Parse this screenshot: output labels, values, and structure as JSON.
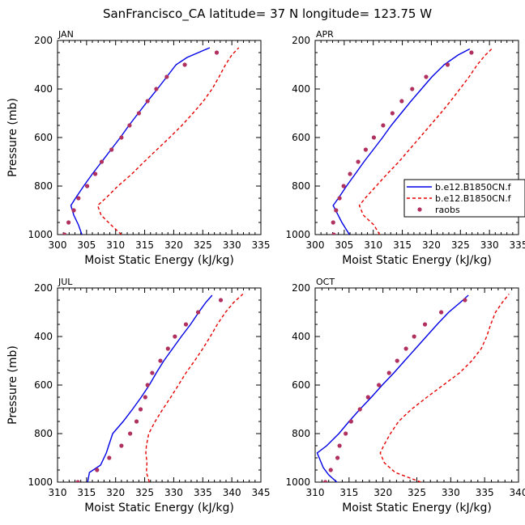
{
  "figure": {
    "title": "SanFrancisco_CA  latitude= 37 N longitude= 123.75 W"
  },
  "legend": {
    "entries": [
      {
        "label": "b.e12.B1850CN.f",
        "style": "solid",
        "color": "#0000e6"
      },
      {
        "label": "b.e12.B1850CN.f",
        "style": "dashed",
        "color": "#e60000"
      },
      {
        "label": "raobs",
        "style": "dot",
        "color": "#b03060"
      }
    ]
  },
  "chart_data": [
    {
      "type": "line",
      "panel_label": "JAN",
      "xlabel": "Moist Static Energy (kJ/kg)",
      "ylabel": "Pressure (mb)",
      "xlim": [
        300,
        335
      ],
      "ylim": [
        1000,
        200
      ],
      "xticks": [
        "300",
        "305",
        "310",
        "315",
        "320",
        "325",
        "330",
        "335"
      ],
      "yticks": [
        "200",
        "400",
        "600",
        "800",
        "1000"
      ],
      "series": [
        {
          "style": "solid",
          "color": "#0000e6",
          "points": [
            [
              304.2,
              1000
            ],
            [
              303.6,
              960
            ],
            [
              302.8,
              920
            ],
            [
              302.3,
              880
            ],
            [
              303.1,
              850
            ],
            [
              304.5,
              800
            ],
            [
              306.0,
              750
            ],
            [
              307.6,
              700
            ],
            [
              309.2,
              650
            ],
            [
              310.8,
              600
            ],
            [
              312.3,
              550
            ],
            [
              313.9,
              500
            ],
            [
              315.5,
              450
            ],
            [
              317.2,
              400
            ],
            [
              318.8,
              350
            ],
            [
              320.4,
              300
            ],
            [
              322.3,
              270
            ],
            [
              326.2,
              230
            ]
          ]
        },
        {
          "style": "dashed",
          "color": "#e60000",
          "points": [
            [
              311.0,
              1000
            ],
            [
              309.2,
              960
            ],
            [
              307.5,
              920
            ],
            [
              306.9,
              880
            ],
            [
              308.3,
              850
            ],
            [
              310.4,
              800
            ],
            [
              312.8,
              750
            ],
            [
              314.9,
              700
            ],
            [
              317.1,
              650
            ],
            [
              319.3,
              600
            ],
            [
              321.4,
              550
            ],
            [
              323.3,
              500
            ],
            [
              325.1,
              450
            ],
            [
              326.6,
              400
            ],
            [
              327.8,
              350
            ],
            [
              328.9,
              300
            ],
            [
              330.0,
              260
            ],
            [
              331.2,
              230
            ]
          ]
        }
      ],
      "raobs": [
        [
          301.2,
          1000
        ],
        [
          301.9,
          950
        ],
        [
          302.8,
          900
        ],
        [
          303.6,
          850
        ],
        [
          305.1,
          800
        ],
        [
          306.5,
          750
        ],
        [
          307.6,
          700
        ],
        [
          309.3,
          650
        ],
        [
          311.0,
          600
        ],
        [
          312.4,
          550
        ],
        [
          314.0,
          500
        ],
        [
          315.5,
          450
        ],
        [
          317.0,
          400
        ],
        [
          318.8,
          350
        ],
        [
          321.9,
          300
        ],
        [
          327.4,
          250
        ]
      ]
    },
    {
      "type": "line",
      "panel_label": "APR",
      "xlabel": "Moist Static Energy (kJ/kg)",
      "ylabel": "",
      "xlim": [
        300,
        335
      ],
      "ylim": [
        1000,
        200
      ],
      "xticks": [
        "300",
        "305",
        "310",
        "315",
        "320",
        "325",
        "330",
        "335"
      ],
      "yticks": [
        "200",
        "400",
        "600",
        "800",
        "1000"
      ],
      "series": [
        {
          "style": "solid",
          "color": "#0000e6",
          "points": [
            [
              305.9,
              1000
            ],
            [
              304.6,
              950
            ],
            [
              303.1,
              880
            ],
            [
              304.0,
              850
            ],
            [
              305.4,
              800
            ],
            [
              306.9,
              750
            ],
            [
              308.4,
              700
            ],
            [
              310.0,
              650
            ],
            [
              311.6,
              600
            ],
            [
              313.1,
              550
            ],
            [
              314.8,
              500
            ],
            [
              316.5,
              450
            ],
            [
              318.3,
              400
            ],
            [
              320.1,
              350
            ],
            [
              322.2,
              300
            ],
            [
              324.6,
              260
            ],
            [
              326.6,
              235
            ]
          ]
        },
        {
          "style": "dashed",
          "color": "#e60000",
          "points": [
            [
              311.1,
              1000
            ],
            [
              310.1,
              960
            ],
            [
              308.3,
              920
            ],
            [
              307.6,
              880
            ],
            [
              308.6,
              850
            ],
            [
              310.5,
              800
            ],
            [
              312.4,
              750
            ],
            [
              314.4,
              700
            ],
            [
              316.2,
              650
            ],
            [
              318.0,
              600
            ],
            [
              319.8,
              550
            ],
            [
              321.6,
              500
            ],
            [
              323.3,
              450
            ],
            [
              324.9,
              400
            ],
            [
              326.5,
              350
            ],
            [
              327.9,
              300
            ],
            [
              329.3,
              260
            ],
            [
              330.6,
              230
            ]
          ]
        }
      ],
      "raobs": [
        [
          303.2,
          1000
        ],
        [
          303.1,
          950
        ],
        [
          303.6,
          900
        ],
        [
          304.2,
          850
        ],
        [
          304.9,
          800
        ],
        [
          306.0,
          750
        ],
        [
          307.4,
          700
        ],
        [
          308.7,
          650
        ],
        [
          310.1,
          600
        ],
        [
          311.7,
          550
        ],
        [
          313.3,
          500
        ],
        [
          314.9,
          450
        ],
        [
          316.7,
          400
        ],
        [
          319.1,
          350
        ],
        [
          322.8,
          300
        ],
        [
          326.9,
          250
        ]
      ]
    },
    {
      "type": "line",
      "panel_label": "JUL",
      "xlabel": "Moist Static Energy (kJ/kg)",
      "ylabel": "Pressure (mb)",
      "xlim": [
        310,
        345
      ],
      "ylim": [
        1000,
        200
      ],
      "xticks": [
        "310",
        "315",
        "320",
        "325",
        "330",
        "335",
        "340",
        "345"
      ],
      "yticks": [
        "200",
        "400",
        "600",
        "800",
        "1000"
      ],
      "series": [
        {
          "style": "solid",
          "color": "#0000e6",
          "points": [
            [
              315.1,
              1010
            ],
            [
              315.5,
              960
            ],
            [
              317.4,
              930
            ],
            [
              318.4,
              880
            ],
            [
              318.8,
              850
            ],
            [
              319.5,
              800
            ],
            [
              321.3,
              750
            ],
            [
              322.9,
              700
            ],
            [
              324.4,
              650
            ],
            [
              325.8,
              600
            ],
            [
              327.0,
              550
            ],
            [
              328.3,
              500
            ],
            [
              329.8,
              450
            ],
            [
              331.3,
              400
            ],
            [
              332.9,
              350
            ],
            [
              334.3,
              300
            ],
            [
              335.5,
              260
            ],
            [
              336.6,
              230
            ]
          ]
        },
        {
          "style": "dashed",
          "color": "#e60000",
          "points": [
            [
              325.8,
              1000
            ],
            [
              325.3,
              960
            ],
            [
              325.4,
              920
            ],
            [
              325.2,
              880
            ],
            [
              325.3,
              850
            ],
            [
              325.7,
              800
            ],
            [
              326.8,
              750
            ],
            [
              328.1,
              700
            ],
            [
              329.5,
              650
            ],
            [
              330.8,
              600
            ],
            [
              332.1,
              550
            ],
            [
              333.6,
              500
            ],
            [
              335.0,
              450
            ],
            [
              336.3,
              400
            ],
            [
              337.5,
              350
            ],
            [
              338.9,
              300
            ],
            [
              340.3,
              260
            ],
            [
              341.9,
              225
            ]
          ]
        }
      ],
      "raobs": [
        [
          313.5,
          1000
        ],
        [
          316.8,
          950
        ],
        [
          318.9,
          900
        ],
        [
          321.0,
          850
        ],
        [
          322.5,
          800
        ],
        [
          323.6,
          750
        ],
        [
          324.3,
          700
        ],
        [
          325.1,
          650
        ],
        [
          325.5,
          600
        ],
        [
          326.3,
          550
        ],
        [
          327.7,
          500
        ],
        [
          329.0,
          450
        ],
        [
          330.2,
          400
        ],
        [
          332.1,
          350
        ],
        [
          334.2,
          300
        ],
        [
          338.1,
          250
        ]
      ]
    },
    {
      "type": "line",
      "panel_label": "OCT",
      "xlabel": "Moist Static Energy (kJ/kg)",
      "ylabel": "",
      "xlim": [
        310,
        340
      ],
      "ylim": [
        1000,
        200
      ],
      "xticks": [
        "310",
        "315",
        "320",
        "325",
        "330",
        "335",
        "340"
      ],
      "yticks": [
        "200",
        "400",
        "600",
        "800",
        "1000"
      ],
      "series": [
        {
          "style": "solid",
          "color": "#0000e6",
          "points": [
            [
              313.6,
              1010
            ],
            [
              312.0,
              970
            ],
            [
              311.2,
              940
            ],
            [
              310.6,
              900
            ],
            [
              310.3,
              880
            ],
            [
              311.7,
              850
            ],
            [
              313.5,
              800
            ],
            [
              315.0,
              750
            ],
            [
              316.6,
              700
            ],
            [
              318.3,
              650
            ],
            [
              319.9,
              600
            ],
            [
              321.6,
              550
            ],
            [
              323.2,
              500
            ],
            [
              324.8,
              450
            ],
            [
              326.4,
              400
            ],
            [
              328.0,
              350
            ],
            [
              329.7,
              300
            ],
            [
              331.4,
              260
            ],
            [
              332.6,
              230
            ]
          ]
        },
        {
          "style": "dashed",
          "color": "#e60000",
          "points": [
            [
              325.6,
              1000
            ],
            [
              321.8,
              960
            ],
            [
              320.2,
              920
            ],
            [
              319.6,
              880
            ],
            [
              320.1,
              850
            ],
            [
              321.1,
              800
            ],
            [
              322.3,
              750
            ],
            [
              324.2,
              700
            ],
            [
              326.5,
              650
            ],
            [
              328.9,
              600
            ],
            [
              331.3,
              550
            ],
            [
              333.1,
              500
            ],
            [
              334.5,
              450
            ],
            [
              335.3,
              400
            ],
            [
              335.9,
              350
            ],
            [
              336.6,
              300
            ],
            [
              337.6,
              260
            ],
            [
              338.6,
              225
            ]
          ]
        }
      ],
      "raobs": [
        [
          311.5,
          1000
        ],
        [
          312.3,
          950
        ],
        [
          313.3,
          900
        ],
        [
          313.6,
          850
        ],
        [
          314.5,
          800
        ],
        [
          315.3,
          750
        ],
        [
          316.6,
          700
        ],
        [
          317.8,
          650
        ],
        [
          319.4,
          600
        ],
        [
          320.9,
          550
        ],
        [
          322.1,
          500
        ],
        [
          323.4,
          450
        ],
        [
          324.6,
          400
        ],
        [
          326.2,
          350
        ],
        [
          328.6,
          300
        ],
        [
          332.1,
          250
        ]
      ]
    }
  ]
}
